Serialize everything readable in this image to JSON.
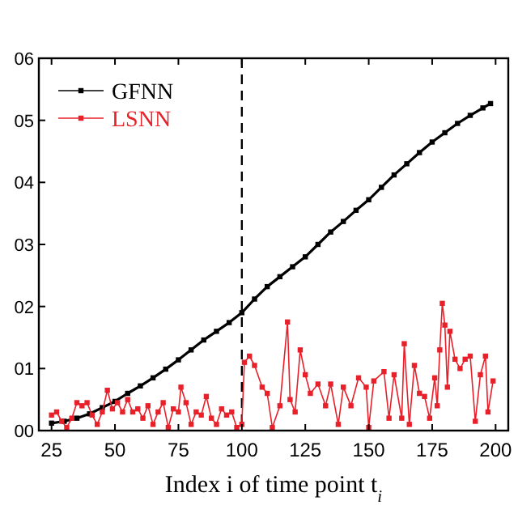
{
  "chart_data": {
    "type": "line",
    "xlabel": "Index i of time point t$_{i}$",
    "xlim": [
      20,
      205
    ],
    "xticks": [
      25,
      50,
      75,
      100,
      125,
      150,
      175,
      200
    ],
    "ylim": [
      0,
      6
    ],
    "yticks": [
      {
        "value": 0,
        "label": "00"
      },
      {
        "value": 1,
        "label": "01"
      },
      {
        "value": 2,
        "label": "02"
      },
      {
        "value": 3,
        "label": "03"
      },
      {
        "value": 4,
        "label": "04"
      },
      {
        "value": 5,
        "label": "05"
      },
      {
        "value": 6,
        "label": "06"
      }
    ],
    "legend": "top left",
    "marker": "square",
    "line_style": "solid",
    "grid": false,
    "ref_lines": [
      {
        "axis": "x",
        "value": 100,
        "line_style": "dashed",
        "color": "#000000"
      }
    ],
    "series": [
      {
        "name": "GFNN",
        "color": "#000000",
        "x": [
          25,
          30,
          35,
          40,
          45,
          50,
          55,
          60,
          65,
          70,
          75,
          80,
          85,
          90,
          95,
          100,
          105,
          110,
          115,
          120,
          125,
          130,
          135,
          140,
          145,
          150,
          155,
          160,
          165,
          170,
          175,
          180,
          185,
          190,
          195,
          198
        ],
        "values": [
          0.12,
          0.15,
          0.2,
          0.27,
          0.37,
          0.47,
          0.6,
          0.72,
          0.85,
          0.99,
          1.14,
          1.3,
          1.46,
          1.6,
          1.74,
          1.9,
          2.12,
          2.32,
          2.48,
          2.64,
          2.8,
          3.0,
          3.2,
          3.37,
          3.55,
          3.72,
          3.92,
          4.12,
          4.3,
          4.48,
          4.65,
          4.8,
          4.95,
          5.08,
          5.2,
          5.27
        ]
      },
      {
        "name": "LSNN",
        "color": "#e8202a",
        "x": [
          25,
          27,
          29,
          31,
          33,
          35,
          37,
          39,
          41,
          43,
          45,
          47,
          49,
          51,
          53,
          55,
          57,
          59,
          61,
          63,
          65,
          67,
          69,
          71,
          73,
          75,
          76,
          78,
          80,
          82,
          84,
          86,
          88,
          90,
          92,
          94,
          96,
          98,
          100,
          101,
          103,
          105,
          108,
          110,
          112,
          115,
          118,
          119,
          121,
          123,
          125,
          127,
          130,
          133,
          135,
          138,
          140,
          143,
          146,
          149,
          150,
          152,
          156,
          158,
          160,
          163,
          164,
          166,
          168,
          170,
          172,
          174,
          176,
          177,
          178,
          179,
          180,
          181,
          182,
          184,
          186,
          188,
          190,
          192,
          194,
          196,
          197,
          199
        ],
        "values": [
          0.25,
          0.3,
          0.15,
          0.05,
          0.2,
          0.45,
          0.4,
          0.45,
          0.25,
          0.1,
          0.3,
          0.65,
          0.35,
          0.45,
          0.3,
          0.5,
          0.3,
          0.35,
          0.2,
          0.4,
          0.1,
          0.3,
          0.45,
          0.05,
          0.35,
          0.3,
          0.7,
          0.45,
          0.1,
          0.3,
          0.25,
          0.55,
          0.2,
          0.1,
          0.35,
          0.25,
          0.3,
          0.05,
          0.1,
          1.1,
          1.2,
          1.05,
          0.7,
          0.6,
          0.05,
          0.4,
          1.75,
          0.5,
          0.3,
          1.3,
          0.9,
          0.6,
          0.75,
          0.4,
          0.75,
          0.1,
          0.7,
          0.4,
          0.85,
          0.7,
          0.05,
          0.8,
          0.95,
          0.2,
          0.9,
          0.2,
          1.4,
          0.1,
          1.05,
          0.6,
          0.55,
          0.2,
          0.85,
          0.4,
          1.3,
          2.05,
          1.7,
          0.7,
          1.6,
          1.15,
          1.0,
          1.15,
          1.2,
          0.15,
          0.9,
          1.2,
          0.3,
          0.8
        ]
      }
    ]
  }
}
